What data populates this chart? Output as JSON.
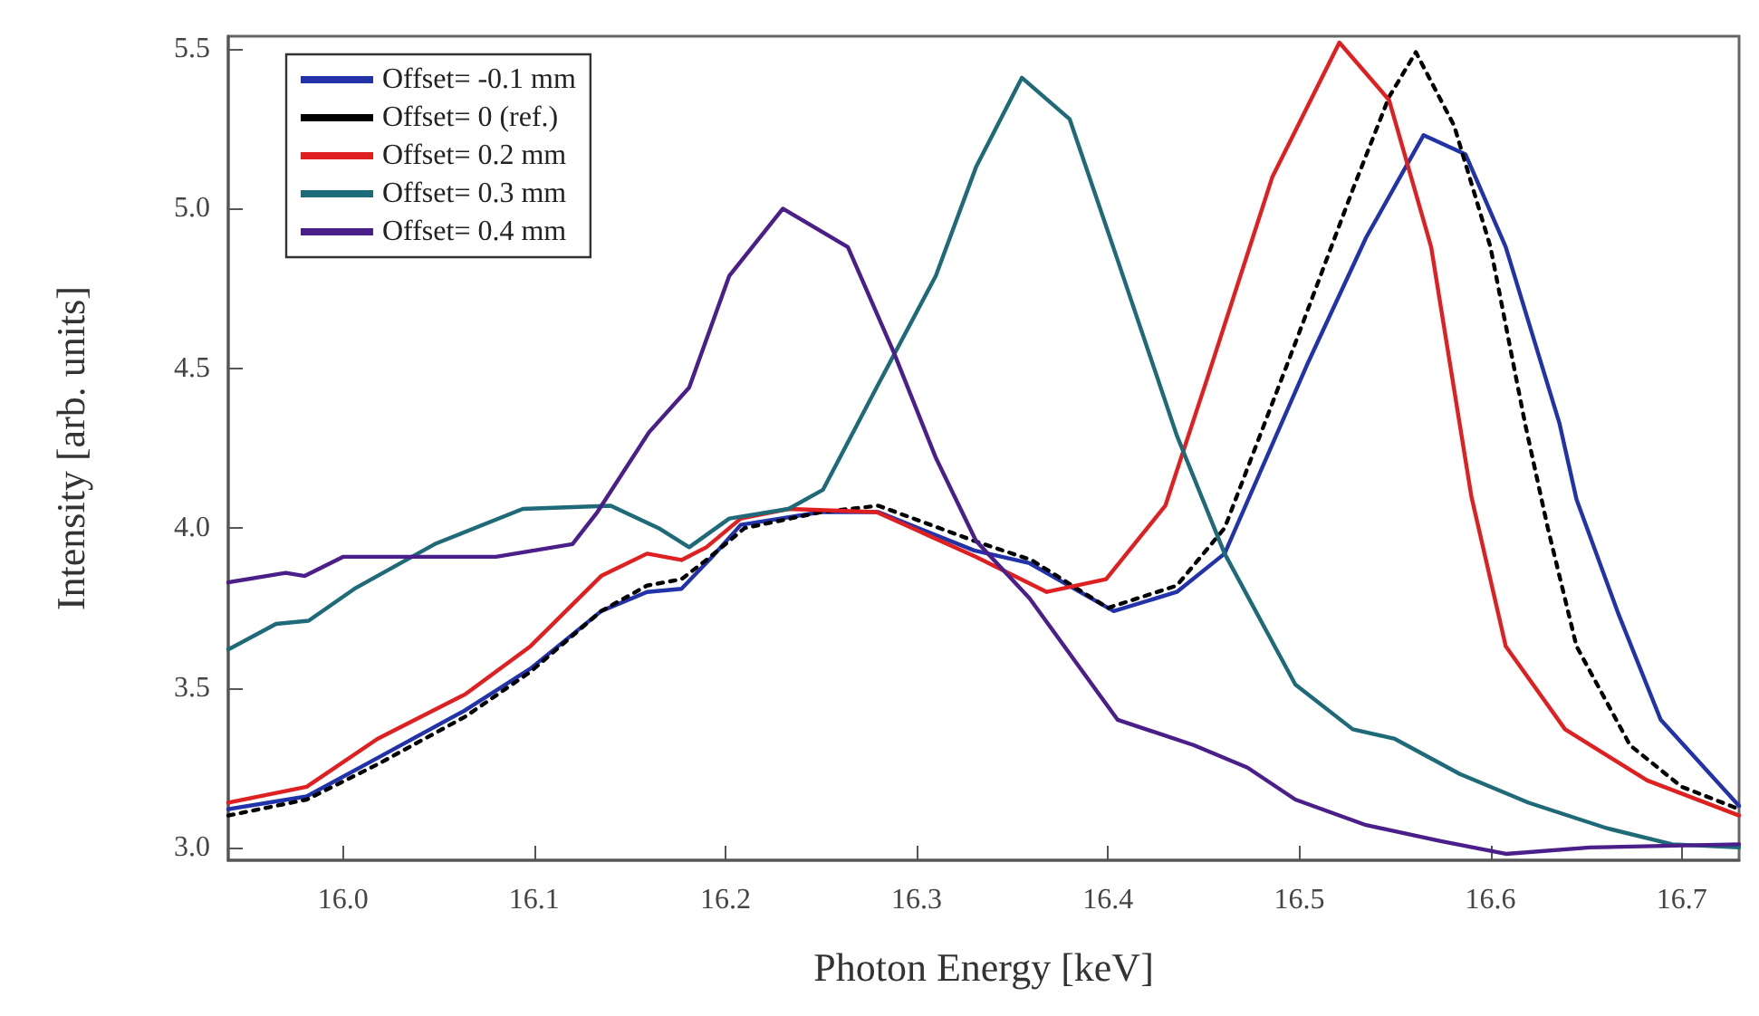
{
  "chart_data": {
    "type": "line",
    "xlabel": "Photon Energy [keV]",
    "ylabel": "Intensity [arb. units]",
    "xlim": [
      15.94,
      16.73
    ],
    "ylim": [
      2.96,
      5.54
    ],
    "xticks": [
      {
        "value": 16,
        "label": "16.0"
      },
      16.1,
      16.2,
      16.3,
      16.4,
      16.5,
      16.6,
      16.7
    ],
    "yticks": [
      {
        "value": 3,
        "label": "3.0"
      },
      3.5,
      {
        "value": 4,
        "label": "4.0"
      },
      4.5,
      {
        "value": 5,
        "label": "5.0"
      },
      5.5
    ],
    "grid": false,
    "legend": "top left",
    "marker": "none",
    "series": [
      {
        "name": "Offset= -0.1 mm",
        "color": "#2233aa",
        "line_style": "solid",
        "x": [
          15.94,
          15.981,
          16.018,
          16.064,
          16.098,
          16.135,
          16.159,
          16.177,
          16.193,
          16.208,
          16.25,
          16.28,
          16.33,
          16.359,
          16.403,
          16.436,
          16.461,
          16.504,
          16.535,
          16.565,
          16.587,
          16.608,
          16.636,
          16.645,
          16.667,
          16.689,
          16.73
        ],
        "values": [
          3.12,
          3.16,
          3.28,
          3.43,
          3.56,
          3.74,
          3.8,
          3.81,
          3.91,
          4.01,
          4.05,
          4.05,
          3.93,
          3.89,
          3.74,
          3.8,
          3.92,
          4.51,
          4.91,
          5.23,
          5.17,
          4.88,
          4.33,
          4.09,
          3.73,
          3.4,
          3.13
        ]
      },
      {
        "name": "Offset= 0 (ref.)",
        "color": "#000000",
        "line_style": "dotted",
        "x": [
          15.94,
          15.981,
          16.018,
          16.064,
          16.098,
          16.135,
          16.159,
          16.177,
          16.19,
          16.21,
          16.25,
          16.28,
          16.33,
          16.36,
          16.4,
          16.436,
          16.461,
          16.498,
          16.528,
          16.547,
          16.561,
          16.581,
          16.6,
          16.618,
          16.63,
          16.645,
          16.673,
          16.7,
          16.73
        ],
        "values": [
          3.1,
          3.15,
          3.26,
          3.41,
          3.55,
          3.74,
          3.82,
          3.84,
          3.9,
          4.0,
          4.05,
          4.07,
          3.96,
          3.9,
          3.75,
          3.82,
          4.0,
          4.58,
          5.06,
          5.35,
          5.49,
          5.26,
          4.88,
          4.33,
          4.0,
          3.63,
          3.32,
          3.19,
          3.12
        ]
      },
      {
        "name": "Offset= 0.2 mm",
        "color": "#e02020",
        "line_style": "solid",
        "x": [
          15.94,
          15.981,
          16.018,
          16.064,
          16.098,
          16.135,
          16.159,
          16.177,
          16.19,
          16.208,
          16.233,
          16.279,
          16.331,
          16.368,
          16.399,
          16.43,
          16.452,
          16.486,
          16.521,
          16.547,
          16.569,
          16.59,
          16.608,
          16.639,
          16.682,
          16.73
        ],
        "values": [
          3.14,
          3.19,
          3.34,
          3.48,
          3.63,
          3.85,
          3.92,
          3.9,
          3.94,
          4.03,
          4.06,
          4.05,
          3.91,
          3.8,
          3.84,
          4.07,
          4.47,
          5.1,
          5.52,
          5.34,
          4.88,
          4.1,
          3.63,
          3.37,
          3.21,
          3.1
        ]
      },
      {
        "name": "Offset= 0.3 mm",
        "color": "#1f6a78",
        "line_style": "solid",
        "x": [
          15.94,
          15.965,
          15.982,
          16.006,
          16.048,
          16.094,
          16.14,
          16.165,
          16.181,
          16.202,
          16.233,
          16.251,
          16.279,
          16.31,
          16.331,
          16.355,
          16.38,
          16.405,
          16.436,
          16.461,
          16.498,
          16.528,
          16.55,
          16.584,
          16.62,
          16.661,
          16.695,
          16.73
        ],
        "values": [
          3.62,
          3.7,
          3.71,
          3.81,
          3.95,
          4.06,
          4.07,
          4.0,
          3.94,
          4.03,
          4.06,
          4.12,
          4.44,
          4.79,
          5.13,
          5.41,
          5.28,
          4.84,
          4.29,
          3.92,
          3.51,
          3.37,
          3.34,
          3.23,
          3.14,
          3.06,
          3.01,
          3.0
        ]
      },
      {
        "name": "Offset= 0.4 mm",
        "color": "#4b1f8a",
        "line_style": "solid",
        "x": [
          15.94,
          15.97,
          15.98,
          16.0,
          16.05,
          16.08,
          16.12,
          16.133,
          16.16,
          16.181,
          16.202,
          16.23,
          16.264,
          16.288,
          16.31,
          16.331,
          16.359,
          16.405,
          16.445,
          16.473,
          16.498,
          16.535,
          16.574,
          16.608,
          16.652,
          16.73
        ],
        "values": [
          3.83,
          3.86,
          3.85,
          3.91,
          3.91,
          3.91,
          3.95,
          4.05,
          4.3,
          4.44,
          4.79,
          5.0,
          4.88,
          4.55,
          4.22,
          3.96,
          3.78,
          3.4,
          3.32,
          3.25,
          3.15,
          3.07,
          3.02,
          2.98,
          3.0,
          3.01
        ]
      }
    ]
  }
}
